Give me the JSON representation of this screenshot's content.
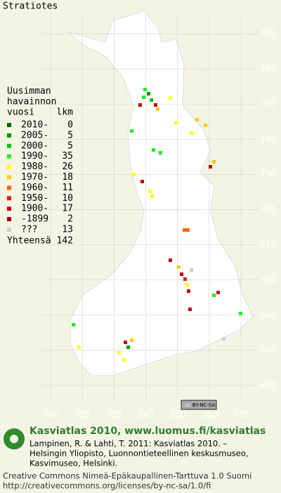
{
  "title": "Stratiotes",
  "legend": {
    "header": [
      "Uusimman",
      "havainnon"
    ],
    "year_heading": "vuosi",
    "count_heading": "lkm",
    "rows": [
      {
        "label": "2010-",
        "count": 0,
        "color": "#006600"
      },
      {
        "label": "2005-",
        "count": 5,
        "color": "#009900"
      },
      {
        "label": "2000-",
        "count": 5,
        "color": "#00cc00"
      },
      {
        "label": "1990-",
        "count": 35,
        "color": "#22ee22"
      },
      {
        "label": "1980-",
        "count": 26,
        "color": "#ffff00"
      },
      {
        "label": "1970-",
        "count": 18,
        "color": "#ffcc00"
      },
      {
        "label": "1960-",
        "count": 11,
        "color": "#ff6600"
      },
      {
        "label": "1950-",
        "count": 10,
        "color": "#dd2200"
      },
      {
        "label": "1900-",
        "count": 17,
        "color": "#cc0000"
      },
      {
        "label": "-1899",
        "count": 2,
        "color": "#990000"
      },
      {
        "label": "???",
        "count": 13,
        "color": "#cccccc"
      }
    ],
    "total_label": "Yhteensä",
    "total": 142
  },
  "map": {
    "yticks": [
      770,
      760,
      750,
      740,
      730,
      720,
      710,
      700,
      690,
      680,
      670
    ],
    "xticks": [
      310,
      320,
      330,
      340,
      350,
      360,
      370
    ]
  },
  "badge": {
    "icon": "cc",
    "text": "BY-NC-SA"
  },
  "footer": {
    "heading": "Kasviatlas 2010, www.luomus.fi/kasviatlas",
    "citation": [
      "Lampinen, R. & Lahti, T. 2011: Kasviatlas 2010. –",
      "Helsingin Yliopisto, Luonnontieteellinen keskusmuseo,",
      "Kasvimuseo, Helsinki."
    ],
    "license": [
      "Creative Commons Nimeä-Epäkaupallinen-Tarttuva 1.0 Suomi",
      "http://creativecommons.org/licenses/by-nc-sa/1.0/fi"
    ]
  }
}
